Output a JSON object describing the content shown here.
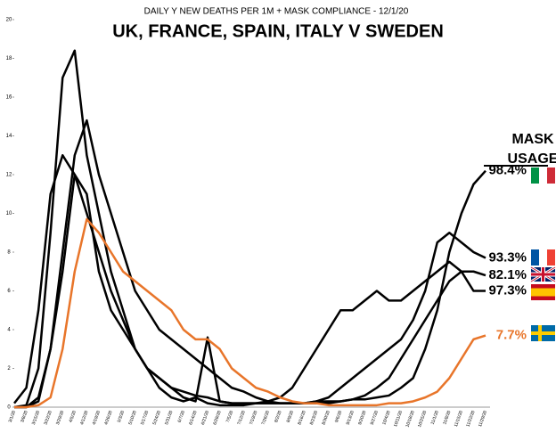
{
  "chart_data": {
    "type": "line",
    "subtitle": "DAILY Y NEW DEATHS PER 1M + MASK COMPLIANCE - 12/1/20",
    "title": "UK, FRANCE, SPAIN, ITALY V SWEDEN",
    "annotation": "MASK USAGE",
    "categories": [
      "3/1/20",
      "3/8/20",
      "3/15/20",
      "3/22/20",
      "3/29/20",
      "4/5/20",
      "4/12/20",
      "4/19/20",
      "4/26/20",
      "5/3/20",
      "5/10/20",
      "5/17/20",
      "5/24/20",
      "5/31/20",
      "6/7/20",
      "6/14/20",
      "6/21/20",
      "6/28/20",
      "7/5/20",
      "7/12/20",
      "7/19/20",
      "7/26/20",
      "8/2/20",
      "8/9/20",
      "8/16/20",
      "8/23/20",
      "8/30/20",
      "9/6/20",
      "9/13/20",
      "9/20/20",
      "9/27/20",
      "10/4/20",
      "10/11/20",
      "10/18/20",
      "10/25/20",
      "11/1/20",
      "11/8/20",
      "11/15/20",
      "11/22/20",
      "11/29/20"
    ],
    "series": [
      {
        "color": "#000000",
        "end_label": "98.4%",
        "values": [
          0.2,
          1,
          5,
          11,
          13,
          12,
          10,
          8,
          6,
          4.5,
          3,
          2,
          1.5,
          1,
          0.8,
          0.6,
          0.5,
          0.3,
          0.2,
          0.2,
          0.2,
          0.2,
          0.2,
          0.2,
          0.2,
          0.3,
          0.3,
          0.3,
          0.4,
          0.4,
          0.5,
          0.6,
          1,
          1.5,
          3,
          5,
          8,
          10,
          11.5,
          12.2
        ]
      },
      {
        "color": "#000000",
        "end_label": "93.3%",
        "values": [
          0,
          0,
          0.3,
          3,
          7,
          12,
          11,
          7,
          5,
          4,
          3,
          2,
          1.5,
          1,
          0.5,
          0.3,
          3.6,
          0.3,
          0.2,
          0.2,
          0.2,
          0.2,
          0.2,
          0.2,
          0.2,
          0.3,
          0.5,
          1,
          1.5,
          2,
          2.5,
          3,
          3.5,
          4.5,
          6,
          8.5,
          9,
          8.5,
          8,
          7.7
        ]
      },
      {
        "color": "#000000",
        "end_label": "82.1%",
        "values": [
          0,
          0,
          0.5,
          3,
          8,
          13,
          14.8,
          12,
          10,
          8,
          6,
          5,
          4,
          3.5,
          3,
          2.5,
          2,
          1.5,
          1,
          0.8,
          0.5,
          0.3,
          0.2,
          0.2,
          0.2,
          0.2,
          0.2,
          0.3,
          0.4,
          0.6,
          1,
          1.5,
          2.5,
          3.5,
          4.5,
          5.5,
          6.5,
          7,
          7,
          6.8
        ]
      },
      {
        "color": "#000000",
        "end_label": "97.3%",
        "values": [
          0,
          0.1,
          2,
          9,
          17,
          18.4,
          13,
          10,
          7,
          5,
          3,
          2,
          1,
          0.5,
          0.3,
          0.5,
          0.2,
          0.1,
          0.1,
          0.1,
          0.2,
          0.3,
          0.5,
          1,
          2,
          3,
          4,
          5,
          5,
          5.5,
          6,
          5.5,
          5.5,
          6,
          6.5,
          7,
          7.5,
          7,
          6,
          6
        ]
      },
      {
        "color": "#e8752a",
        "end_label": "7.7%",
        "values": [
          0,
          0,
          0.1,
          0.5,
          3,
          7,
          9.7,
          9,
          8,
          7,
          6.5,
          6,
          5.5,
          5,
          4,
          3.5,
          3.5,
          3,
          2,
          1.5,
          1,
          0.8,
          0.5,
          0.3,
          0.2,
          0.2,
          0.1,
          0.1,
          0.1,
          0.1,
          0.1,
          0.2,
          0.2,
          0.3,
          0.5,
          0.8,
          1.5,
          2.5,
          3.5,
          3.7
        ]
      }
    ],
    "ylim": [
      0,
      20
    ],
    "yticks": [
      0,
      2,
      4,
      6,
      8,
      10,
      12,
      14,
      16,
      18,
      20
    ],
    "grid": false
  }
}
